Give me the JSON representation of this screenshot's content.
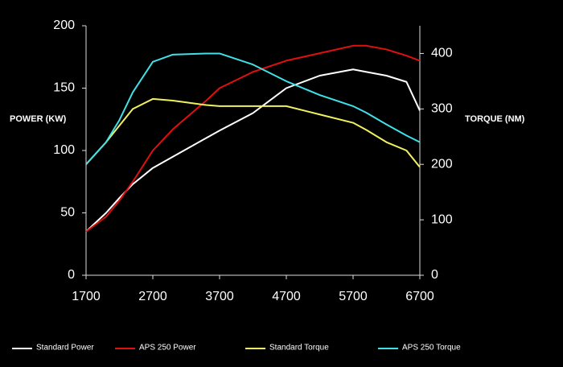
{
  "chart_data": {
    "type": "line",
    "y_label": "POWER (KW)",
    "y2_label": "TORQUE (NM)",
    "x": [
      1700,
      2000,
      2200,
      2400,
      2700,
      3000,
      3500,
      3700,
      4200,
      4700,
      5200,
      5700,
      5900,
      6200,
      6500,
      6700
    ],
    "xlim": [
      1700,
      6700
    ],
    "xticks": [
      1700,
      2700,
      3700,
      4700,
      5700,
      6700
    ],
    "ylim": [
      0,
      200
    ],
    "yticks": [
      0,
      50,
      100,
      150,
      200
    ],
    "y2lim": [
      0,
      450
    ],
    "y2ticks": [
      0,
      100,
      200,
      300,
      400
    ],
    "series": [
      {
        "name": "Standard Power",
        "color": "#ffffff",
        "values": [
          35,
          50,
          62,
          73,
          86,
          95,
          110,
          116,
          130,
          150,
          160,
          165,
          163,
          160,
          155,
          132
        ]
      },
      {
        "name": "APS 250 Power",
        "color": "#e01010",
        "values": [
          35,
          47,
          60,
          75,
          100,
          117,
          140,
          150,
          163,
          172,
          178,
          184,
          184,
          181,
          176,
          172
        ]
      },
      {
        "name": "Standard Torque",
        "color": "#f0f060",
        "axis": "y2",
        "values": [
          200,
          240,
          270,
          300,
          318,
          315,
          307,
          305,
          305,
          305,
          290,
          275,
          262,
          240,
          225,
          195
        ]
      },
      {
        "name": "APS 250 Torque",
        "color": "#40e0e8",
        "axis": "y2",
        "values": [
          200,
          240,
          280,
          330,
          385,
          398,
          400,
          400,
          380,
          350,
          325,
          305,
          293,
          272,
          252,
          240
        ]
      }
    ]
  }
}
